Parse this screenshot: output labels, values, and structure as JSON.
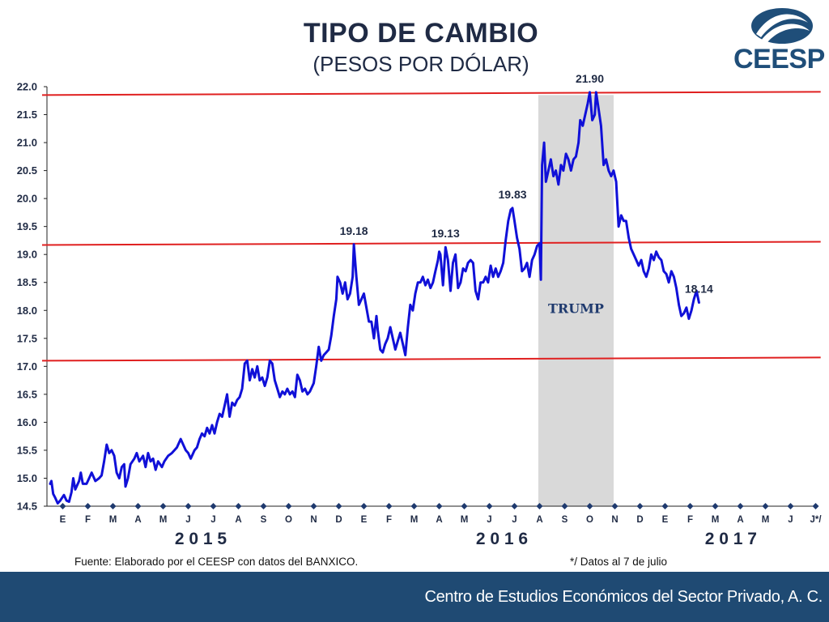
{
  "title": "TIPO DE CAMBIO",
  "subtitle": "(PESOS POR DÓLAR)",
  "logo_text": "CEESP",
  "footer": {
    "source": "Fuente: Elaborado por el CEESP con datos del BANXICO.",
    "note": "*/ Datos al 7 de julio",
    "organization": "Centro de Estudios Económicos del Sector Privado, A. C."
  },
  "colors": {
    "series": "#1010d8",
    "reference_lines": "#e02020",
    "shade": "#d9d9d9",
    "title": "#1f2a44",
    "footer_bar": "#1f4a73",
    "logo": "#1f4e79"
  },
  "chart_data": {
    "type": "line",
    "title": "TIPO DE CAMBIO",
    "subtitle": "(PESOS POR DÓLAR)",
    "ylim": [
      14.5,
      22.0
    ],
    "ytick_labels": [
      "22.0",
      "21.5",
      "21.0",
      "20.5",
      "20.0",
      "19.5",
      "19.0",
      "18.5",
      "18.0",
      "17.5",
      "17.0",
      "16.5",
      "16.0",
      "15.5",
      "15.0",
      "14.5"
    ],
    "month_labels": [
      "E",
      "F",
      "M",
      "A",
      "M",
      "J",
      "J",
      "A",
      "S",
      "O",
      "N",
      "D",
      "E",
      "F",
      "M",
      "A",
      "M",
      "J",
      "J",
      "A",
      "S",
      "O",
      "N",
      "D",
      "E",
      "F",
      "M",
      "A",
      "M",
      "J",
      "J*/"
    ],
    "year_labels": [
      {
        "text": "2 0 1 5",
        "month_start": 0,
        "month_end": 12
      },
      {
        "text": "2 0 1 6",
        "month_start": 12,
        "month_end": 24
      },
      {
        "text": "2 0 1 7",
        "month_start": 24,
        "month_end": 30.25
      }
    ],
    "grid": false,
    "x_unit": "months since January 2015",
    "series": [
      {
        "values": [
          [
            0.0,
            14.9
          ],
          [
            0.05,
            14.95
          ],
          [
            0.12,
            14.72
          ],
          [
            0.2,
            14.65
          ],
          [
            0.3,
            14.55
          ],
          [
            0.4,
            14.6
          ],
          [
            0.55,
            14.7
          ],
          [
            0.65,
            14.6
          ],
          [
            0.75,
            14.58
          ],
          [
            0.85,
            14.75
          ],
          [
            0.92,
            15.0
          ],
          [
            1.0,
            14.8
          ],
          [
            1.05,
            14.85
          ],
          [
            1.15,
            14.95
          ],
          [
            1.22,
            15.1
          ],
          [
            1.3,
            14.9
          ],
          [
            1.45,
            14.9
          ],
          [
            1.55,
            15.0
          ],
          [
            1.65,
            15.1
          ],
          [
            1.8,
            14.95
          ],
          [
            1.95,
            15.0
          ],
          [
            2.05,
            15.05
          ],
          [
            2.15,
            15.3
          ],
          [
            2.25,
            15.6
          ],
          [
            2.35,
            15.45
          ],
          [
            2.45,
            15.5
          ],
          [
            2.55,
            15.4
          ],
          [
            2.65,
            15.1
          ],
          [
            2.75,
            15.0
          ],
          [
            2.85,
            15.2
          ],
          [
            2.95,
            15.25
          ],
          [
            3.0,
            14.85
          ],
          [
            3.1,
            15.0
          ],
          [
            3.2,
            15.25
          ],
          [
            3.35,
            15.35
          ],
          [
            3.45,
            15.45
          ],
          [
            3.55,
            15.3
          ],
          [
            3.7,
            15.4
          ],
          [
            3.8,
            15.2
          ],
          [
            3.9,
            15.45
          ],
          [
            4.0,
            15.3
          ],
          [
            4.1,
            15.35
          ],
          [
            4.2,
            15.15
          ],
          [
            4.3,
            15.3
          ],
          [
            4.45,
            15.2
          ],
          [
            4.55,
            15.3
          ],
          [
            4.7,
            15.4
          ],
          [
            4.85,
            15.45
          ],
          [
            4.95,
            15.5
          ],
          [
            5.05,
            15.55
          ],
          [
            5.2,
            15.7
          ],
          [
            5.3,
            15.6
          ],
          [
            5.4,
            15.5
          ],
          [
            5.5,
            15.45
          ],
          [
            5.6,
            15.35
          ],
          [
            5.75,
            15.5
          ],
          [
            5.85,
            15.55
          ],
          [
            5.95,
            15.7
          ],
          [
            6.05,
            15.8
          ],
          [
            6.15,
            15.75
          ],
          [
            6.25,
            15.9
          ],
          [
            6.35,
            15.8
          ],
          [
            6.45,
            15.95
          ],
          [
            6.55,
            15.8
          ],
          [
            6.65,
            16.0
          ],
          [
            6.75,
            16.15
          ],
          [
            6.85,
            16.1
          ],
          [
            6.95,
            16.3
          ],
          [
            7.05,
            16.5
          ],
          [
            7.15,
            16.1
          ],
          [
            7.25,
            16.35
          ],
          [
            7.35,
            16.3
          ],
          [
            7.45,
            16.4
          ],
          [
            7.55,
            16.45
          ],
          [
            7.65,
            16.6
          ],
          [
            7.75,
            17.05
          ],
          [
            7.85,
            17.1
          ],
          [
            7.95,
            16.75
          ],
          [
            8.05,
            16.95
          ],
          [
            8.15,
            16.8
          ],
          [
            8.25,
            17.0
          ],
          [
            8.35,
            16.75
          ],
          [
            8.45,
            16.8
          ],
          [
            8.55,
            16.65
          ],
          [
            8.65,
            16.8
          ],
          [
            8.75,
            17.1
          ],
          [
            8.85,
            17.05
          ],
          [
            8.95,
            16.75
          ],
          [
            9.05,
            16.6
          ],
          [
            9.15,
            16.45
          ],
          [
            9.25,
            16.55
          ],
          [
            9.35,
            16.5
          ],
          [
            9.45,
            16.6
          ],
          [
            9.55,
            16.5
          ],
          [
            9.65,
            16.55
          ],
          [
            9.75,
            16.45
          ],
          [
            9.85,
            16.85
          ],
          [
            9.95,
            16.75
          ],
          [
            10.05,
            16.55
          ],
          [
            10.15,
            16.6
          ],
          [
            10.25,
            16.5
          ],
          [
            10.35,
            16.55
          ],
          [
            10.5,
            16.7
          ],
          [
            10.6,
            17.0
          ],
          [
            10.7,
            17.35
          ],
          [
            10.8,
            17.1
          ],
          [
            10.9,
            17.2
          ],
          [
            11.0,
            17.25
          ],
          [
            11.1,
            17.3
          ],
          [
            11.2,
            17.55
          ],
          [
            11.3,
            17.9
          ],
          [
            11.4,
            18.2
          ],
          [
            11.45,
            18.6
          ],
          [
            11.55,
            18.5
          ],
          [
            11.65,
            18.3
          ],
          [
            11.75,
            18.5
          ],
          [
            11.85,
            18.2
          ],
          [
            11.95,
            18.3
          ],
          [
            12.05,
            18.6
          ],
          [
            12.1,
            19.18
          ],
          [
            12.2,
            18.6
          ],
          [
            12.3,
            18.1
          ],
          [
            12.4,
            18.2
          ],
          [
            12.5,
            18.3
          ],
          [
            12.6,
            18.05
          ],
          [
            12.7,
            17.8
          ],
          [
            12.8,
            17.8
          ],
          [
            12.9,
            17.5
          ],
          [
            13.0,
            17.9
          ],
          [
            13.05,
            17.65
          ],
          [
            13.15,
            17.3
          ],
          [
            13.25,
            17.25
          ],
          [
            13.35,
            17.4
          ],
          [
            13.45,
            17.5
          ],
          [
            13.55,
            17.7
          ],
          [
            13.65,
            17.5
          ],
          [
            13.75,
            17.3
          ],
          [
            13.85,
            17.45
          ],
          [
            13.95,
            17.6
          ],
          [
            14.05,
            17.4
          ],
          [
            14.15,
            17.2
          ],
          [
            14.25,
            17.7
          ],
          [
            14.35,
            18.1
          ],
          [
            14.45,
            18.0
          ],
          [
            14.55,
            18.3
          ],
          [
            14.65,
            18.5
          ],
          [
            14.75,
            18.5
          ],
          [
            14.85,
            18.6
          ],
          [
            14.95,
            18.45
          ],
          [
            15.05,
            18.55
          ],
          [
            15.15,
            18.4
          ],
          [
            15.25,
            18.5
          ],
          [
            15.35,
            18.7
          ],
          [
            15.45,
            18.9
          ],
          [
            15.5,
            19.05
          ],
          [
            15.55,
            19.0
          ],
          [
            15.65,
            18.45
          ],
          [
            15.75,
            19.13
          ],
          [
            15.85,
            18.9
          ],
          [
            15.95,
            18.35
          ],
          [
            16.05,
            18.85
          ],
          [
            16.15,
            19.0
          ],
          [
            16.25,
            18.4
          ],
          [
            16.35,
            18.5
          ],
          [
            16.45,
            18.75
          ],
          [
            16.55,
            18.7
          ],
          [
            16.65,
            18.85
          ],
          [
            16.75,
            18.9
          ],
          [
            16.85,
            18.85
          ],
          [
            16.95,
            18.35
          ],
          [
            17.05,
            18.2
          ],
          [
            17.15,
            18.5
          ],
          [
            17.25,
            18.5
          ],
          [
            17.35,
            18.6
          ],
          [
            17.45,
            18.5
          ],
          [
            17.55,
            18.8
          ],
          [
            17.65,
            18.6
          ],
          [
            17.75,
            18.75
          ],
          [
            17.85,
            18.6
          ],
          [
            17.95,
            18.7
          ],
          [
            18.05,
            18.85
          ],
          [
            18.15,
            19.25
          ],
          [
            18.25,
            19.6
          ],
          [
            18.35,
            19.8
          ],
          [
            18.42,
            19.83
          ],
          [
            18.5,
            19.6
          ],
          [
            18.6,
            19.3
          ],
          [
            18.7,
            19.1
          ],
          [
            18.8,
            18.7
          ],
          [
            18.9,
            18.75
          ],
          [
            19.0,
            18.85
          ],
          [
            19.1,
            18.6
          ],
          [
            19.2,
            18.9
          ],
          [
            19.3,
            19.0
          ],
          [
            19.4,
            19.15
          ],
          [
            19.5,
            19.2
          ],
          [
            19.55,
            18.55
          ],
          [
            19.6,
            20.6
          ],
          [
            19.68,
            21.0
          ],
          [
            19.75,
            20.3
          ],
          [
            19.85,
            20.5
          ],
          [
            19.95,
            20.7
          ],
          [
            20.05,
            20.4
          ],
          [
            20.15,
            20.5
          ],
          [
            20.25,
            20.25
          ],
          [
            20.35,
            20.6
          ],
          [
            20.45,
            20.5
          ],
          [
            20.55,
            20.8
          ],
          [
            20.65,
            20.7
          ],
          [
            20.75,
            20.5
          ],
          [
            20.85,
            20.7
          ],
          [
            20.95,
            20.75
          ],
          [
            21.05,
            21.0
          ],
          [
            21.12,
            21.4
          ],
          [
            21.22,
            21.3
          ],
          [
            21.32,
            21.5
          ],
          [
            21.42,
            21.7
          ],
          [
            21.5,
            21.9
          ],
          [
            21.6,
            21.4
          ],
          [
            21.7,
            21.5
          ],
          [
            21.75,
            21.9
          ],
          [
            21.85,
            21.6
          ],
          [
            21.95,
            21.3
          ],
          [
            22.05,
            20.6
          ],
          [
            22.15,
            20.7
          ],
          [
            22.25,
            20.5
          ],
          [
            22.35,
            20.4
          ],
          [
            22.45,
            20.5
          ],
          [
            22.55,
            20.3
          ],
          [
            22.65,
            19.5
          ],
          [
            22.75,
            19.7
          ],
          [
            22.85,
            19.6
          ],
          [
            22.95,
            19.6
          ],
          [
            23.05,
            19.3
          ],
          [
            23.15,
            19.1
          ],
          [
            23.25,
            19.0
          ],
          [
            23.35,
            18.9
          ],
          [
            23.45,
            18.8
          ],
          [
            23.55,
            18.9
          ],
          [
            23.65,
            18.7
          ],
          [
            23.75,
            18.6
          ],
          [
            23.85,
            18.75
          ],
          [
            23.95,
            19.0
          ],
          [
            24.05,
            18.9
          ],
          [
            24.15,
            19.05
          ],
          [
            24.25,
            18.95
          ],
          [
            24.35,
            18.9
          ],
          [
            24.45,
            18.7
          ],
          [
            24.55,
            18.65
          ],
          [
            24.65,
            18.5
          ],
          [
            24.75,
            18.7
          ],
          [
            24.85,
            18.6
          ],
          [
            24.95,
            18.4
          ],
          [
            25.05,
            18.1
          ],
          [
            25.15,
            17.9
          ],
          [
            25.25,
            17.95
          ],
          [
            25.35,
            18.05
          ],
          [
            25.45,
            17.85
          ],
          [
            25.55,
            18.0
          ],
          [
            25.65,
            18.2
          ],
          [
            25.75,
            18.35
          ],
          [
            25.85,
            18.14
          ]
        ]
      }
    ],
    "reference_lines": [
      21.85,
      19.17,
      17.1
    ],
    "shaded_region": {
      "label": "TRUMP",
      "x_start": 19.45,
      "x_end": 22.45
    },
    "annotations": [
      {
        "text": "21.90",
        "x": 21.5,
        "y": 21.9
      },
      {
        "text": "19.83",
        "x": 18.42,
        "y": 19.83
      },
      {
        "text": "19.18",
        "x": 12.1,
        "y": 19.18
      },
      {
        "text": "19.13",
        "x": 15.75,
        "y": 19.13
      },
      {
        "text": "18.14",
        "x": 25.85,
        "y": 18.14
      }
    ]
  }
}
